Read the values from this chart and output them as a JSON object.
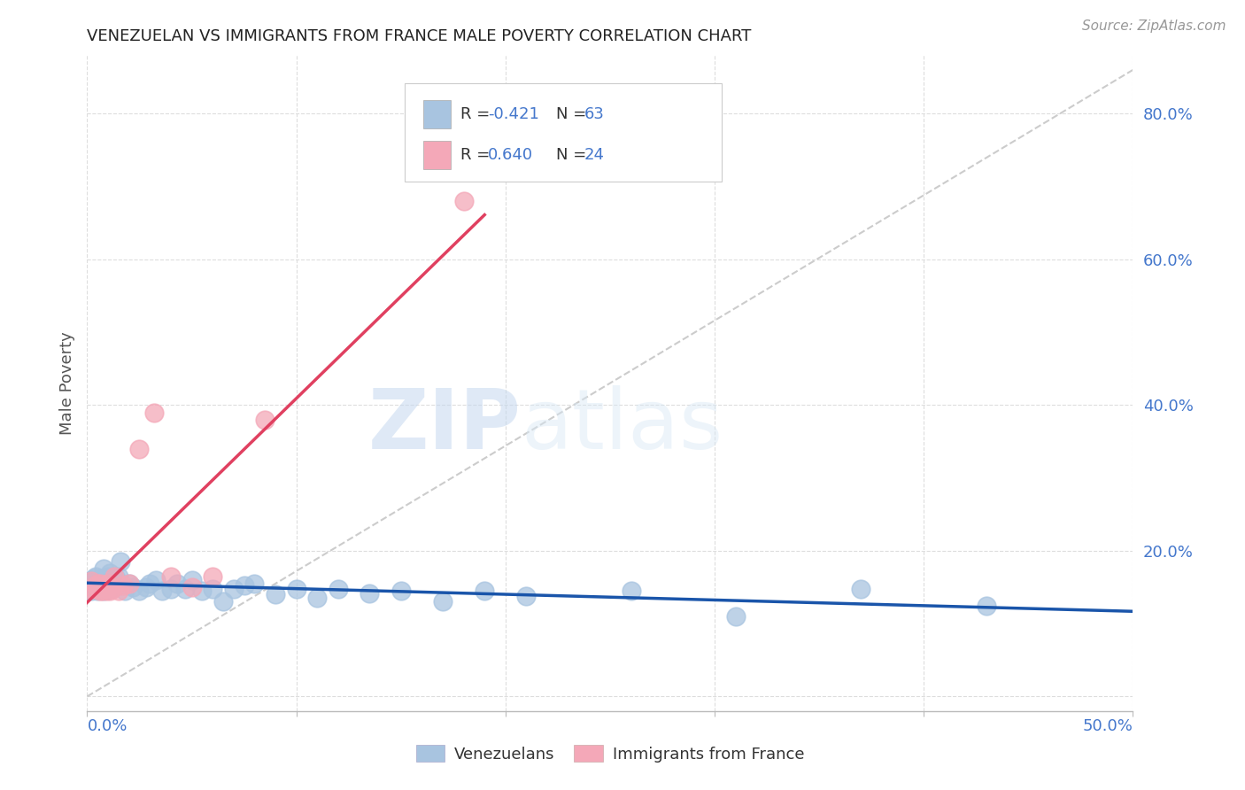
{
  "title": "VENEZUELAN VS IMMIGRANTS FROM FRANCE MALE POVERTY CORRELATION CHART",
  "source": "Source: ZipAtlas.com",
  "ylabel": "Male Poverty",
  "ytick_values": [
    0.0,
    0.2,
    0.4,
    0.6,
    0.8
  ],
  "xlim": [
    0.0,
    0.5
  ],
  "ylim": [
    -0.02,
    0.88
  ],
  "venezuelan_R": -0.421,
  "venezuelan_N": 63,
  "france_R": 0.64,
  "france_N": 24,
  "venezuelan_color": "#a8c4e0",
  "france_color": "#f4a8b8",
  "venezuelan_line_color": "#1a55aa",
  "france_line_color": "#e04060",
  "diagonal_color": "#cccccc",
  "background_color": "#ffffff",
  "grid_color": "#dddddd",
  "legend_text_color": "#4477cc",
  "title_color": "#222222",
  "watermark_zip": "ZIP",
  "watermark_atlas": "atlas",
  "venezuelan_x": [
    0.001,
    0.002,
    0.002,
    0.003,
    0.003,
    0.004,
    0.004,
    0.004,
    0.005,
    0.005,
    0.005,
    0.005,
    0.006,
    0.006,
    0.006,
    0.007,
    0.007,
    0.007,
    0.008,
    0.008,
    0.008,
    0.009,
    0.009,
    0.01,
    0.01,
    0.011,
    0.011,
    0.012,
    0.013,
    0.014,
    0.015,
    0.016,
    0.018,
    0.02,
    0.022,
    0.025,
    0.028,
    0.03,
    0.033,
    0.036,
    0.04,
    0.043,
    0.047,
    0.05,
    0.055,
    0.06,
    0.065,
    0.07,
    0.075,
    0.08,
    0.09,
    0.1,
    0.11,
    0.12,
    0.135,
    0.15,
    0.17,
    0.19,
    0.21,
    0.26,
    0.31,
    0.37,
    0.43
  ],
  "venezuelan_y": [
    0.155,
    0.16,
    0.145,
    0.158,
    0.162,
    0.15,
    0.155,
    0.165,
    0.148,
    0.152,
    0.158,
    0.145,
    0.16,
    0.155,
    0.148,
    0.162,
    0.155,
    0.15,
    0.175,
    0.155,
    0.145,
    0.16,
    0.15,
    0.155,
    0.165,
    0.17,
    0.148,
    0.155,
    0.16,
    0.162,
    0.165,
    0.185,
    0.145,
    0.155,
    0.15,
    0.145,
    0.15,
    0.155,
    0.16,
    0.145,
    0.148,
    0.155,
    0.148,
    0.16,
    0.145,
    0.148,
    0.13,
    0.148,
    0.152,
    0.155,
    0.14,
    0.148,
    0.135,
    0.148,
    0.142,
    0.145,
    0.13,
    0.145,
    0.138,
    0.145,
    0.11,
    0.148,
    0.125
  ],
  "france_x": [
    0.001,
    0.002,
    0.003,
    0.004,
    0.005,
    0.006,
    0.006,
    0.007,
    0.008,
    0.009,
    0.01,
    0.011,
    0.012,
    0.013,
    0.015,
    0.017,
    0.02,
    0.025,
    0.032,
    0.04,
    0.05,
    0.06,
    0.085,
    0.18
  ],
  "france_y": [
    0.148,
    0.158,
    0.148,
    0.152,
    0.155,
    0.145,
    0.155,
    0.145,
    0.15,
    0.145,
    0.155,
    0.145,
    0.148,
    0.165,
    0.145,
    0.152,
    0.155,
    0.34,
    0.39,
    0.165,
    0.15,
    0.165,
    0.38,
    0.68
  ],
  "legend_entries": [
    {
      "color": "#a8c4e0",
      "R": "-0.421",
      "N": "63"
    },
    {
      "color": "#f4a8b8",
      "R": "0.640",
      "N": "24"
    }
  ]
}
